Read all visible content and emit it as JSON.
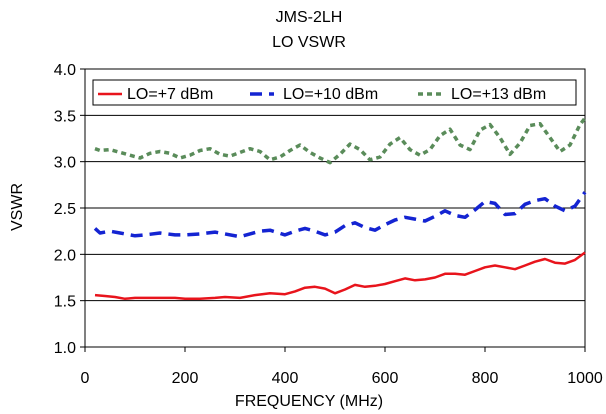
{
  "chart_data": {
    "type": "line",
    "title": "JMS-2LH",
    "subtitle": "LO VSWR",
    "xlabel": "FREQUENCY (MHz)",
    "ylabel": "VSWR",
    "xlim": [
      0,
      1000
    ],
    "ylim": [
      1.0,
      4.0
    ],
    "xticks": [
      0,
      200,
      400,
      600,
      800,
      1000
    ],
    "yticks": [
      1.0,
      1.5,
      2.0,
      2.5,
      3.0,
      3.5,
      4.0
    ],
    "xtick_labels": [
      "0",
      "200",
      "400",
      "600",
      "800",
      "1000"
    ],
    "ytick_labels": [
      "1.0",
      "1.5",
      "2.0",
      "2.5",
      "3.0",
      "3.5",
      "4.0"
    ],
    "grid": "horizontal",
    "legend_position": "top",
    "series": [
      {
        "name": "LO=+7 dBm",
        "color": "#e8141c",
        "dash": "solid",
        "x": [
          20,
          40,
          60,
          80,
          100,
          120,
          150,
          180,
          200,
          230,
          260,
          280,
          310,
          340,
          370,
          400,
          420,
          440,
          460,
          480,
          500,
          520,
          540,
          560,
          580,
          600,
          620,
          640,
          660,
          680,
          700,
          720,
          740,
          760,
          780,
          800,
          820,
          840,
          860,
          880,
          900,
          920,
          940,
          960,
          980,
          1000
        ],
        "y": [
          1.56,
          1.55,
          1.54,
          1.52,
          1.53,
          1.53,
          1.53,
          1.53,
          1.52,
          1.52,
          1.53,
          1.54,
          1.53,
          1.56,
          1.58,
          1.57,
          1.6,
          1.64,
          1.65,
          1.63,
          1.58,
          1.62,
          1.67,
          1.65,
          1.66,
          1.68,
          1.71,
          1.74,
          1.72,
          1.73,
          1.75,
          1.79,
          1.79,
          1.78,
          1.82,
          1.86,
          1.88,
          1.86,
          1.84,
          1.88,
          1.92,
          1.95,
          1.91,
          1.9,
          1.94,
          2.02
        ]
      },
      {
        "name": "LO=+10 dBm",
        "color": "#1424d2",
        "dash": "long-dash",
        "x": [
          20,
          30,
          50,
          70,
          100,
          120,
          150,
          180,
          200,
          230,
          260,
          280,
          310,
          330,
          350,
          370,
          400,
          420,
          440,
          460,
          480,
          500,
          520,
          540,
          560,
          580,
          600,
          620,
          640,
          660,
          680,
          700,
          720,
          740,
          760,
          780,
          800,
          820,
          840,
          860,
          880,
          900,
          920,
          940,
          960,
          980,
          1000
        ],
        "y": [
          2.28,
          2.23,
          2.25,
          2.23,
          2.2,
          2.21,
          2.23,
          2.21,
          2.21,
          2.22,
          2.24,
          2.22,
          2.19,
          2.22,
          2.25,
          2.26,
          2.21,
          2.25,
          2.28,
          2.25,
          2.21,
          2.24,
          2.31,
          2.34,
          2.29,
          2.26,
          2.32,
          2.37,
          2.4,
          2.38,
          2.36,
          2.41,
          2.47,
          2.42,
          2.4,
          2.48,
          2.57,
          2.55,
          2.43,
          2.44,
          2.54,
          2.58,
          2.6,
          2.52,
          2.47,
          2.52,
          2.67
        ]
      },
      {
        "name": "LO=+13 dBm",
        "color": "#5a8c5a",
        "dash": "short-dash",
        "x": [
          20,
          30,
          50,
          70,
          90,
          110,
          130,
          150,
          170,
          190,
          210,
          230,
          250,
          270,
          290,
          310,
          330,
          350,
          370,
          390,
          410,
          430,
          450,
          470,
          490,
          510,
          530,
          550,
          570,
          590,
          610,
          630,
          650,
          670,
          690,
          710,
          730,
          750,
          770,
          790,
          810,
          830,
          850,
          870,
          890,
          910,
          930,
          950,
          970,
          990,
          1000
        ],
        "y": [
          3.14,
          3.12,
          3.13,
          3.1,
          3.07,
          3.04,
          3.09,
          3.11,
          3.09,
          3.04,
          3.07,
          3.12,
          3.14,
          3.08,
          3.06,
          3.1,
          3.14,
          3.11,
          3.02,
          3.05,
          3.12,
          3.18,
          3.1,
          3.04,
          2.99,
          3.08,
          3.19,
          3.13,
          3.02,
          3.05,
          3.19,
          3.26,
          3.13,
          3.07,
          3.13,
          3.28,
          3.35,
          3.18,
          3.13,
          3.34,
          3.4,
          3.26,
          3.08,
          3.2,
          3.39,
          3.41,
          3.26,
          3.11,
          3.18,
          3.4,
          3.47
        ]
      }
    ]
  }
}
